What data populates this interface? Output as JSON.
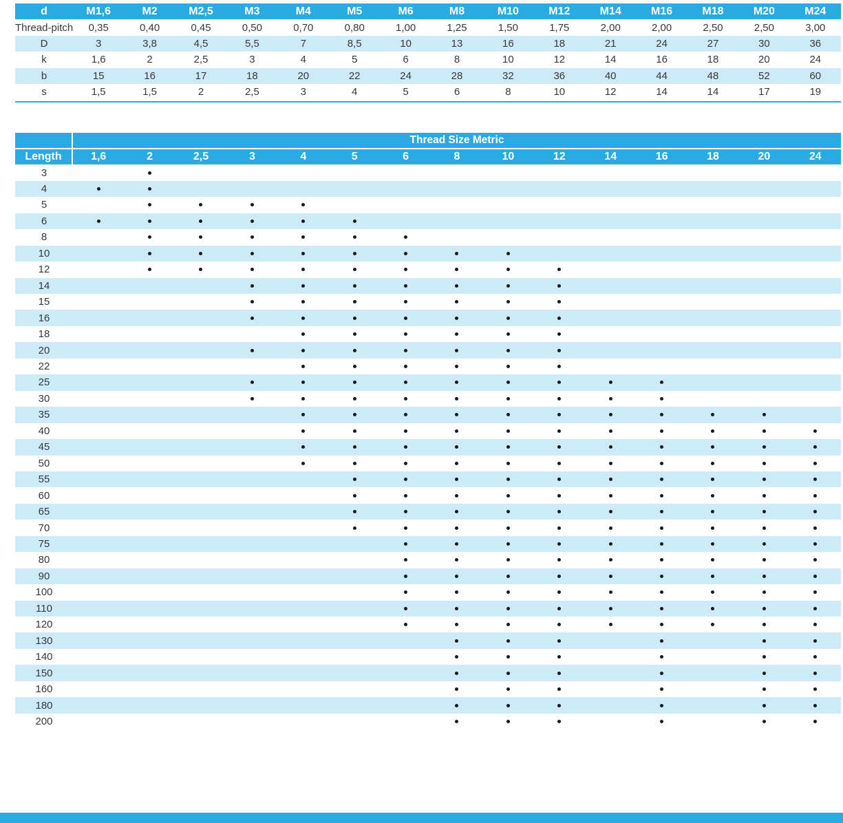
{
  "colors": {
    "accent": "#29ABE2",
    "stripe": "#CDEAF9",
    "dot": "#1A1A1A",
    "text": "#383838",
    "header_text": "#FFFFFF"
  },
  "dimension_table": {
    "header_label": "d",
    "col_headers": [
      "M1,6",
      "M2",
      "M2,5",
      "M3",
      "M4",
      "M5",
      "M6",
      "M8",
      "M10",
      "M12",
      "M14",
      "M16",
      "M18",
      "M20",
      "M24"
    ],
    "rows": [
      {
        "label": "Thread-pitch",
        "values": [
          "0,35",
          "0,40",
          "0,45",
          "0,50",
          "0,70",
          "0,80",
          "1,00",
          "1,25",
          "1,50",
          "1,75",
          "2,00",
          "2,00",
          "2,50",
          "2,50",
          "3,00"
        ]
      },
      {
        "label": "D",
        "values": [
          "3",
          "3,8",
          "4,5",
          "5,5",
          "7",
          "8,5",
          "10",
          "13",
          "16",
          "18",
          "21",
          "24",
          "27",
          "30",
          "36"
        ]
      },
      {
        "label": "k",
        "values": [
          "1,6",
          "2",
          "2,5",
          "3",
          "4",
          "5",
          "6",
          "8",
          "10",
          "12",
          "14",
          "16",
          "18",
          "20",
          "24"
        ]
      },
      {
        "label": "b",
        "values": [
          "15",
          "16",
          "17",
          "18",
          "20",
          "22",
          "24",
          "28",
          "32",
          "36",
          "40",
          "44",
          "48",
          "52",
          "60"
        ]
      },
      {
        "label": "s",
        "values": [
          "1,5",
          "1,5",
          "2",
          "2,5",
          "3",
          "4",
          "5",
          "6",
          "8",
          "10",
          "12",
          "14",
          "14",
          "17",
          "19"
        ]
      }
    ]
  },
  "availability_table": {
    "span_header": "Thread Size Metric",
    "length_header": "Length",
    "col_headers": [
      "1,6",
      "2",
      "2,5",
      "3",
      "4",
      "5",
      "6",
      "8",
      "10",
      "12",
      "14",
      "16",
      "18",
      "20",
      "24"
    ],
    "rows": [
      {
        "length": "3",
        "sizes": [
          "2"
        ]
      },
      {
        "length": "4",
        "sizes": [
          "1,6",
          "2"
        ]
      },
      {
        "length": "5",
        "sizes": [
          "2",
          "2,5",
          "3",
          "4"
        ]
      },
      {
        "length": "6",
        "sizes": [
          "1,6",
          "2",
          "2,5",
          "3",
          "4",
          "5"
        ]
      },
      {
        "length": "8",
        "sizes": [
          "2",
          "2,5",
          "3",
          "4",
          "5",
          "6"
        ]
      },
      {
        "length": "10",
        "sizes": [
          "2",
          "2,5",
          "3",
          "4",
          "5",
          "6",
          "8",
          "10"
        ]
      },
      {
        "length": "12",
        "sizes": [
          "2",
          "2,5",
          "3",
          "4",
          "5",
          "6",
          "8",
          "10",
          "12"
        ]
      },
      {
        "length": "14",
        "sizes": [
          "3",
          "4",
          "5",
          "6",
          "8",
          "10",
          "12"
        ]
      },
      {
        "length": "15",
        "sizes": [
          "3",
          "4",
          "5",
          "6",
          "8",
          "10",
          "12"
        ]
      },
      {
        "length": "16",
        "sizes": [
          "3",
          "4",
          "5",
          "6",
          "8",
          "10",
          "12"
        ]
      },
      {
        "length": "18",
        "sizes": [
          "4",
          "5",
          "6",
          "8",
          "10",
          "12"
        ]
      },
      {
        "length": "20",
        "sizes": [
          "3",
          "4",
          "5",
          "6",
          "8",
          "10",
          "12"
        ]
      },
      {
        "length": "22",
        "sizes": [
          "4",
          "5",
          "6",
          "8",
          "10",
          "12"
        ]
      },
      {
        "length": "25",
        "sizes": [
          "3",
          "4",
          "5",
          "6",
          "8",
          "10",
          "12",
          "14",
          "16"
        ]
      },
      {
        "length": "30",
        "sizes": [
          "3",
          "4",
          "5",
          "6",
          "8",
          "10",
          "12",
          "14",
          "16"
        ]
      },
      {
        "length": "35",
        "sizes": [
          "4",
          "5",
          "6",
          "8",
          "10",
          "12",
          "14",
          "16",
          "18",
          "20"
        ]
      },
      {
        "length": "40",
        "sizes": [
          "4",
          "5",
          "6",
          "8",
          "10",
          "12",
          "14",
          "16",
          "18",
          "20",
          "24"
        ]
      },
      {
        "length": "45",
        "sizes": [
          "4",
          "5",
          "6",
          "8",
          "10",
          "12",
          "14",
          "16",
          "18",
          "20",
          "24"
        ]
      },
      {
        "length": "50",
        "sizes": [
          "4",
          "5",
          "6",
          "8",
          "10",
          "12",
          "14",
          "16",
          "18",
          "20",
          "24"
        ]
      },
      {
        "length": "55",
        "sizes": [
          "5",
          "6",
          "8",
          "10",
          "12",
          "14",
          "16",
          "18",
          "20",
          "24"
        ]
      },
      {
        "length": "60",
        "sizes": [
          "5",
          "6",
          "8",
          "10",
          "12",
          "14",
          "16",
          "18",
          "20",
          "24"
        ]
      },
      {
        "length": "65",
        "sizes": [
          "5",
          "6",
          "8",
          "10",
          "12",
          "14",
          "16",
          "18",
          "20",
          "24"
        ]
      },
      {
        "length": "70",
        "sizes": [
          "5",
          "6",
          "8",
          "10",
          "12",
          "14",
          "16",
          "18",
          "20",
          "24"
        ]
      },
      {
        "length": "75",
        "sizes": [
          "6",
          "8",
          "10",
          "12",
          "14",
          "16",
          "18",
          "20",
          "24"
        ]
      },
      {
        "length": "80",
        "sizes": [
          "6",
          "8",
          "10",
          "12",
          "14",
          "16",
          "18",
          "20",
          "24"
        ]
      },
      {
        "length": "90",
        "sizes": [
          "6",
          "8",
          "10",
          "12",
          "14",
          "16",
          "18",
          "20",
          "24"
        ]
      },
      {
        "length": "100",
        "sizes": [
          "6",
          "8",
          "10",
          "12",
          "14",
          "16",
          "18",
          "20",
          "24"
        ]
      },
      {
        "length": "110",
        "sizes": [
          "6",
          "8",
          "10",
          "12",
          "14",
          "16",
          "18",
          "20",
          "24"
        ]
      },
      {
        "length": "120",
        "sizes": [
          "6",
          "8",
          "10",
          "12",
          "14",
          "16",
          "18",
          "20",
          "24"
        ]
      },
      {
        "length": "130",
        "sizes": [
          "8",
          "10",
          "12",
          "16",
          "20",
          "24"
        ]
      },
      {
        "length": "140",
        "sizes": [
          "8",
          "10",
          "12",
          "16",
          "20",
          "24"
        ]
      },
      {
        "length": "150",
        "sizes": [
          "8",
          "10",
          "12",
          "16",
          "20",
          "24"
        ]
      },
      {
        "length": "160",
        "sizes": [
          "8",
          "10",
          "12",
          "16",
          "20",
          "24"
        ]
      },
      {
        "length": "180",
        "sizes": [
          "8",
          "10",
          "12",
          "16",
          "20",
          "24"
        ]
      },
      {
        "length": "200",
        "sizes": [
          "8",
          "10",
          "12",
          "16",
          "20",
          "24"
        ]
      }
    ]
  }
}
